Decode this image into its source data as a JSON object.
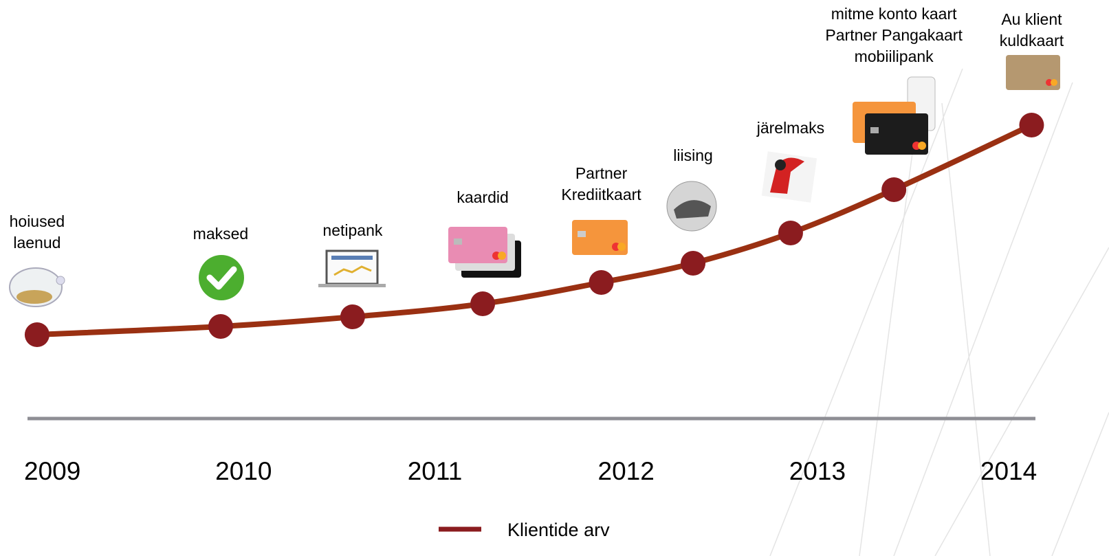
{
  "chart_data": {
    "type": "line",
    "x": [
      2008.92,
      2009.88,
      2010.57,
      2011.25,
      2011.87,
      2012.35,
      2012.86,
      2013.4,
      2014.12
    ],
    "annotations": [
      [
        "hoiused",
        "laenud"
      ],
      [
        "maksed"
      ],
      [
        "netipank"
      ],
      [
        "kaardid"
      ],
      [
        "Partner",
        "Krediitkaart"
      ],
      [
        "liising"
      ],
      [
        "järelmaks"
      ],
      [
        "mitme konto kaart",
        "Partner Pangakaart",
        "mobiilipank"
      ],
      [
        "Au klient",
        "kuldkaart"
      ]
    ],
    "series": [
      {
        "name": "Klientide arv",
        "color": "#9a3012",
        "marker_color": "#8b1c1f",
        "values": [
          122,
          134,
          148,
          167,
          198,
          226,
          270,
          333,
          427
        ]
      }
    ],
    "xlim": [
      2008.87,
      2014.14
    ],
    "xticks": [
      2009,
      2010,
      2011,
      2012,
      2013,
      2014
    ],
    "ylim": [
      0,
      450
    ]
  }
}
